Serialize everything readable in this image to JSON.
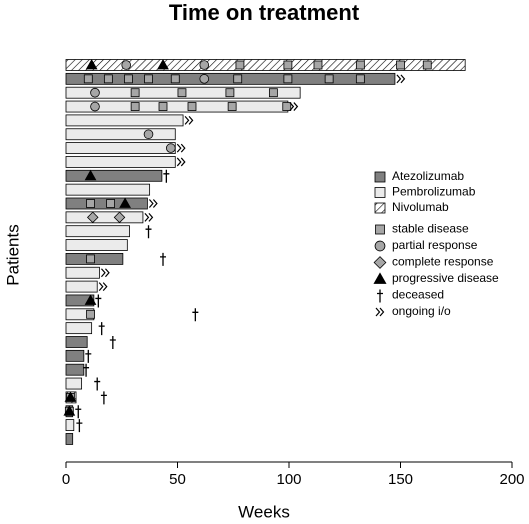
{
  "chart_data": {
    "type": "swimmer",
    "title": "Time on treatment",
    "xlabel": "Weeks",
    "ylabel": "Patients",
    "xlim": [
      0,
      200
    ],
    "xticks": [
      0,
      50,
      100,
      150,
      200
    ],
    "treatments": [
      {
        "name": "Atezolizumab",
        "color": "#808080",
        "hatch": false
      },
      {
        "name": "Pembrolizumab",
        "color": "#ebebeb",
        "hatch": false
      },
      {
        "name": "Nivolumab",
        "color": "#ffffff",
        "hatch": true
      }
    ],
    "event_types": [
      "stable disease",
      "partial response",
      "complete response",
      "progressive disease"
    ],
    "event_colors": [
      "#a6a6a6",
      "#a6a6a6",
      "#a6a6a6",
      "#000000"
    ],
    "deceased_label": "deceased",
    "ongoing_label": "ongoing i/o",
    "patients": [
      {
        "treatment": 2,
        "weeks": 179,
        "events": [
          [
            78,
            99.5,
            113,
            132,
            150,
            162
          ],
          [
            27,
            62
          ],
          [],
          [
            11.5,
            43.5
          ]
        ],
        "deceased": null,
        "ongoing": false
      },
      {
        "treatment": 0,
        "weeks": 147.5,
        "events": [
          [
            10,
            19,
            28,
            37,
            49,
            77,
            99.5,
            118,
            132
          ],
          [
            62
          ],
          [],
          []
        ],
        "deceased": null,
        "ongoing": true
      },
      {
        "treatment": 1,
        "weeks": 105,
        "events": [
          [
            31,
            52,
            73.5,
            93
          ],
          [
            13
          ],
          [],
          []
        ],
        "deceased": null,
        "ongoing": false
      },
      {
        "treatment": 1,
        "weeks": 99.5,
        "events": [
          [
            31,
            43.5,
            56.5,
            74.5,
            99
          ],
          [
            13
          ],
          [],
          []
        ],
        "deceased": null,
        "ongoing": true
      },
      {
        "treatment": 1,
        "weeks": 52.5,
        "events": [
          [],
          [],
          [],
          []
        ],
        "deceased": null,
        "ongoing": true
      },
      {
        "treatment": 1,
        "weeks": 49,
        "events": [
          [],
          [
            37
          ],
          [],
          []
        ],
        "deceased": null,
        "ongoing": false
      },
      {
        "treatment": 1,
        "weeks": 49,
        "events": [
          [],
          [
            47
          ],
          [],
          []
        ],
        "deceased": null,
        "ongoing": true
      },
      {
        "treatment": 1,
        "weeks": 49,
        "events": [
          [],
          [],
          [],
          []
        ],
        "deceased": null,
        "ongoing": true
      },
      {
        "treatment": 0,
        "weeks": 43,
        "events": [
          [],
          [],
          [],
          [
            11
          ]
        ],
        "deceased": 45,
        "ongoing": false
      },
      {
        "treatment": 1,
        "weeks": 37.5,
        "events": [
          [],
          [],
          [],
          []
        ],
        "deceased": null,
        "ongoing": false
      },
      {
        "treatment": 0,
        "weeks": 36.5,
        "events": [
          [
            11,
            20
          ],
          [],
          [],
          [
            26.5
          ]
        ],
        "deceased": null,
        "ongoing": true
      },
      {
        "treatment": 1,
        "weeks": 34.5,
        "events": [
          [],
          [],
          [
            12,
            24
          ],
          []
        ],
        "deceased": null,
        "ongoing": true
      },
      {
        "treatment": 1,
        "weeks": 28.5,
        "events": [
          [],
          [],
          [],
          []
        ],
        "deceased": 37,
        "ongoing": false
      },
      {
        "treatment": 1,
        "weeks": 27.5,
        "events": [
          [],
          [],
          [],
          []
        ],
        "deceased": null,
        "ongoing": false
      },
      {
        "treatment": 0,
        "weeks": 25.5,
        "events": [
          [
            11
          ],
          [],
          [],
          []
        ],
        "deceased": 43.5,
        "ongoing": false
      },
      {
        "treatment": 1,
        "weeks": 15,
        "events": [
          [],
          [],
          [],
          []
        ],
        "deceased": null,
        "ongoing": true
      },
      {
        "treatment": 1,
        "weeks": 14,
        "events": [
          [],
          [],
          [],
          []
        ],
        "deceased": null,
        "ongoing": true
      },
      {
        "treatment": 0,
        "weeks": 12.5,
        "events": [
          [],
          [],
          [],
          [
            11
          ]
        ],
        "deceased": 14.5,
        "ongoing": false
      },
      {
        "treatment": 1,
        "weeks": 12.5,
        "events": [
          [
            11
          ],
          [],
          [],
          []
        ],
        "deceased": 58,
        "ongoing": false
      },
      {
        "treatment": 1,
        "weeks": 11.5,
        "events": [
          [],
          [],
          [],
          []
        ],
        "deceased": 16,
        "ongoing": false
      },
      {
        "treatment": 0,
        "weeks": 9.5,
        "events": [
          [],
          [],
          [],
          []
        ],
        "deceased": 21,
        "ongoing": false
      },
      {
        "treatment": 0,
        "weeks": 8,
        "events": [
          [],
          [],
          [],
          []
        ],
        "deceased": 10,
        "ongoing": false
      },
      {
        "treatment": 0,
        "weeks": 8,
        "events": [
          [],
          [],
          [],
          []
        ],
        "deceased": 9,
        "ongoing": false
      },
      {
        "treatment": 1,
        "weeks": 7,
        "events": [
          [],
          [],
          [],
          []
        ],
        "deceased": 14,
        "ongoing": false
      },
      {
        "treatment": 2,
        "weeks": 4.5,
        "events": [
          [
            2
          ],
          [],
          [],
          [
            2
          ]
        ],
        "deceased": 17,
        "ongoing": false
      },
      {
        "treatment": 0,
        "weeks": 3,
        "events": [
          [
            1.5
          ],
          [],
          [],
          [
            1.5
          ]
        ],
        "deceased": 5.5,
        "ongoing": false
      },
      {
        "treatment": 1,
        "weeks": 3.5,
        "events": [
          [],
          [],
          [],
          []
        ],
        "deceased": 6,
        "ongoing": false
      },
      {
        "treatment": 0,
        "weeks": 3,
        "events": [
          [],
          [],
          [],
          []
        ],
        "deceased": null,
        "ongoing": false
      }
    ]
  }
}
